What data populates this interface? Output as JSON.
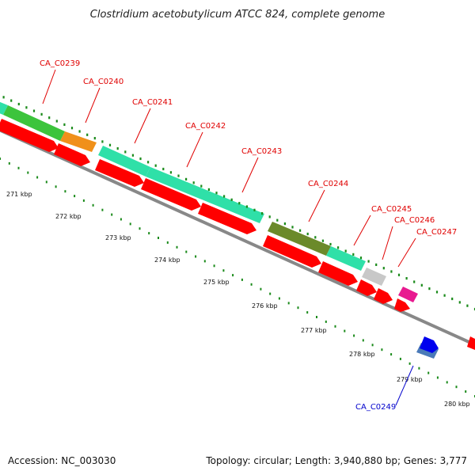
{
  "title": "Clostridium acetobutylicum ATCC 824, complete genome",
  "footer": {
    "accession": "Accession: NC_003030",
    "summary": "Topology: circular; Length: 3,940,880 bp; Genes: 3,777"
  },
  "colors": {
    "forward_label": "#e00000",
    "reverse_label": "#0000cc",
    "backbone": "#888888",
    "cds": "#ff0000",
    "tick_dots": "#1a8a1a"
  },
  "scale_labels": [
    "271 kbp",
    "272 kbp",
    "273 kbp",
    "274 kbp",
    "275 kbp",
    "276 kbp",
    "277 kbp",
    "278 kbp",
    "279 kbp",
    "280 kbp"
  ],
  "genes": [
    {
      "label": "CA_C0239",
      "strand": "forward"
    },
    {
      "label": "CA_C0240",
      "strand": "forward"
    },
    {
      "label": "CA_C0241",
      "strand": "forward"
    },
    {
      "label": "CA_C0242",
      "strand": "forward"
    },
    {
      "label": "CA_C0243",
      "strand": "forward"
    },
    {
      "label": "CA_C0244",
      "strand": "forward"
    },
    {
      "label": "CA_C0245",
      "strand": "forward"
    },
    {
      "label": "CA_C0246",
      "strand": "forward"
    },
    {
      "label": "CA_C0247",
      "strand": "forward"
    },
    {
      "label": "CA_C0249",
      "strand": "reverse"
    }
  ]
}
